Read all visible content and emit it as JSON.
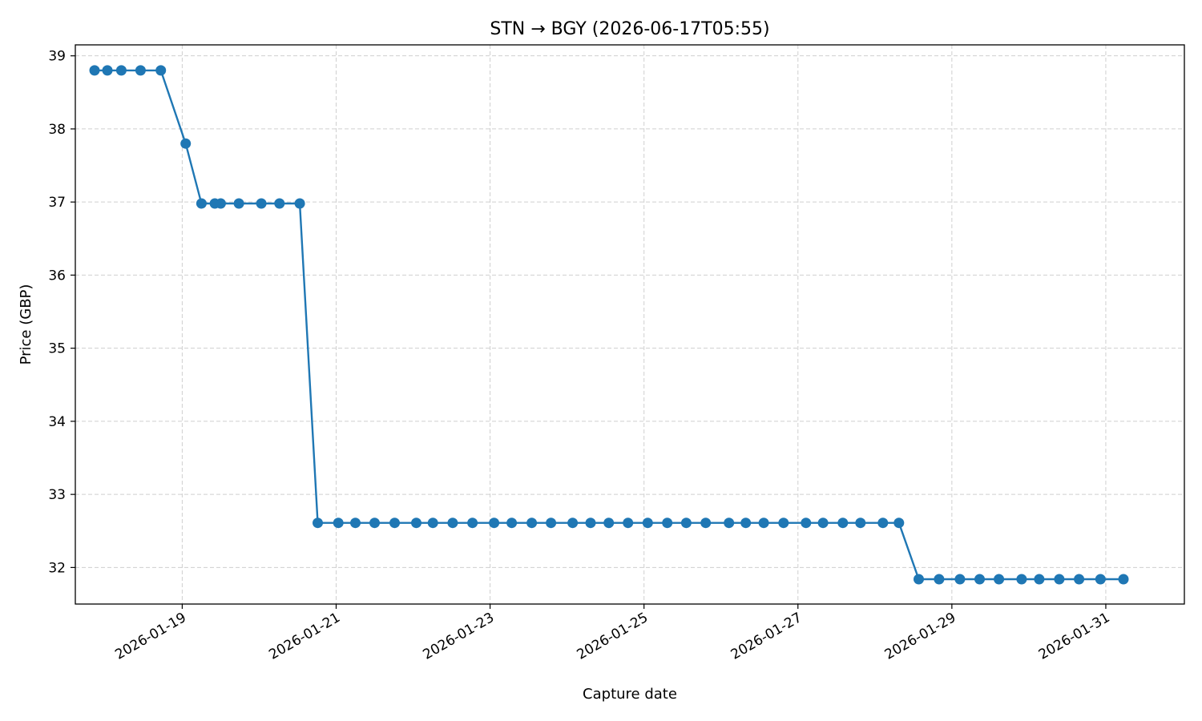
{
  "chart_data": {
    "type": "line",
    "title": "STN → BGY (2026-06-17T05:55)",
    "xlabel": "Capture date",
    "ylabel": "Price (GBP)",
    "xlim": [
      "2026-01-17T14:40",
      "2026-02-01T00:30"
    ],
    "ylim": [
      31.5,
      39.15
    ],
    "grid": true,
    "x_ticks": [
      "2026-01-19",
      "2026-01-21",
      "2026-01-23",
      "2026-01-25",
      "2026-01-27",
      "2026-01-29",
      "2026-01-31"
    ],
    "y_ticks": [
      32,
      33,
      34,
      35,
      36,
      37,
      38,
      39
    ],
    "colors": {
      "series": "#1f77b4",
      "grid": "#b0b0b0"
    },
    "series": [
      {
        "x": [
          "2026-01-17T20:40",
          "2026-01-18T00:40",
          "2026-01-18T05:00",
          "2026-01-18T11:00",
          "2026-01-18T17:20",
          "2026-01-19T01:05",
          "2026-01-19T06:00",
          "2026-01-19T10:10",
          "2026-01-19T12:00",
          "2026-01-19T17:40",
          "2026-01-20T00:40",
          "2026-01-20T06:20",
          "2026-01-20T12:40",
          "2026-01-20T18:15",
          "2026-01-21T00:40",
          "2026-01-21T06:00",
          "2026-01-21T12:00",
          "2026-01-21T18:15",
          "2026-01-22T01:00",
          "2026-01-22T06:10",
          "2026-01-22T12:20",
          "2026-01-22T18:30",
          "2026-01-23T01:15",
          "2026-01-23T06:45",
          "2026-01-23T13:00",
          "2026-01-23T19:00",
          "2026-01-24T01:45",
          "2026-01-24T07:20",
          "2026-01-24T13:00",
          "2026-01-24T19:00",
          "2026-01-25T01:10",
          "2026-01-25T07:15",
          "2026-01-25T13:10",
          "2026-01-25T19:15",
          "2026-01-26T02:30",
          "2026-01-26T07:45",
          "2026-01-26T13:20",
          "2026-01-26T19:30",
          "2026-01-27T02:30",
          "2026-01-27T07:50",
          "2026-01-27T14:00",
          "2026-01-27T19:30",
          "2026-01-28T02:30",
          "2026-01-28T07:30",
          "2026-01-28T13:40",
          "2026-01-28T20:00",
          "2026-01-29T02:30",
          "2026-01-29T08:40",
          "2026-01-29T14:40",
          "2026-01-29T21:45",
          "2026-01-30T03:15",
          "2026-01-30T09:30",
          "2026-01-30T15:40",
          "2026-01-30T22:20",
          "2026-01-31T05:30"
        ],
        "values": [
          38.8,
          38.8,
          38.8,
          38.8,
          38.8,
          37.8,
          36.98,
          36.98,
          36.98,
          36.98,
          36.98,
          36.98,
          36.98,
          32.61,
          32.61,
          32.61,
          32.61,
          32.61,
          32.61,
          32.61,
          32.61,
          32.61,
          32.61,
          32.61,
          32.61,
          32.61,
          32.61,
          32.61,
          32.61,
          32.61,
          32.61,
          32.61,
          32.61,
          32.61,
          32.61,
          32.61,
          32.61,
          32.61,
          32.61,
          32.61,
          32.61,
          32.61,
          32.61,
          32.61,
          31.84,
          31.84,
          31.84,
          31.84,
          31.84,
          31.84,
          31.84,
          31.84,
          31.84,
          31.84,
          31.84
        ]
      }
    ]
  }
}
